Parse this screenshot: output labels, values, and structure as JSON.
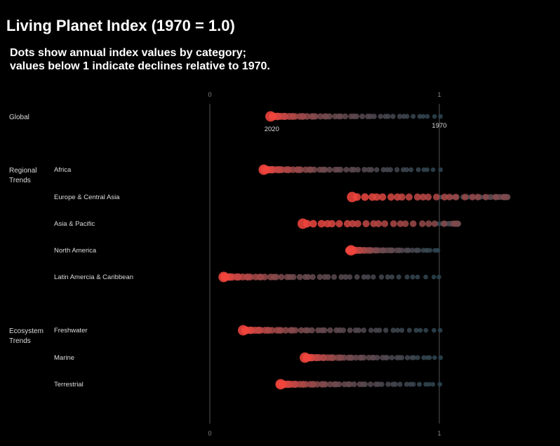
{
  "title": "Living Planet Index (1970 = 1.0)",
  "subtitle_lines": [
    "Dots show annual index values by category;",
    "values below 1 indicate declines relative to 1970."
  ],
  "colors": {
    "background": "#000000",
    "recent": "#f0443c",
    "mid": "#6e4a4e",
    "early": "#2b4450",
    "axis": "#555555"
  },
  "chart_data": {
    "type": "dot-strip",
    "title": "Living Planet Index (1970 = 1.0)",
    "xlim": [
      0,
      1
    ],
    "x_ticks": [
      0,
      1
    ],
    "year_range": [
      1970,
      2020
    ],
    "annotations": {
      "start_label": "2020",
      "end_label": "1970"
    },
    "groups": [
      {
        "label": "Global",
        "rows": [
          {
            "name": "",
            "start": 1.0,
            "end": 0.27
          }
        ]
      },
      {
        "label": "Regional Trends",
        "rows": [
          {
            "name": "Africa",
            "start": 1.0,
            "end": 0.24
          },
          {
            "name": "Europe & Central Asia",
            "start": 1.0,
            "end": 0.62,
            "peak": 1.3
          },
          {
            "name": "Asia & Pacific",
            "start": 1.0,
            "end": 0.4,
            "peak": 1.08
          },
          {
            "name": "North America",
            "start": 1.0,
            "end": 0.61
          },
          {
            "name": "Latin Amercia & Caribbean",
            "start": 1.0,
            "end": 0.06
          }
        ]
      },
      {
        "label": "Ecosystem Trends",
        "rows": [
          {
            "name": "Freshwater",
            "start": 1.0,
            "end": 0.15
          },
          {
            "name": "Marine",
            "start": 1.0,
            "end": 0.42
          },
          {
            "name": "Terrestrial",
            "start": 1.0,
            "end": 0.31
          }
        ]
      }
    ]
  }
}
